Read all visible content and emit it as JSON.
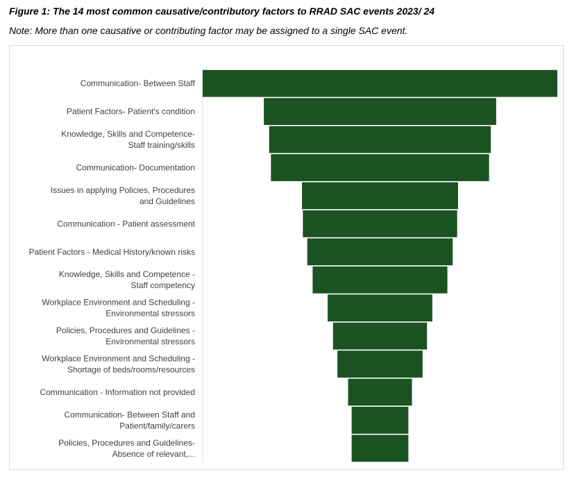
{
  "figure": {
    "title": "Figure 1: The 14 most common causative/contributory factors to RRAD SAC events 2023/ 24",
    "note": "Note: More than one causative or contributing factor may be assigned to a single SAC event."
  },
  "colors": {
    "bar": "#1a5221",
    "axis": "#d9d9d9",
    "label": "#404040"
  },
  "chart_data": {
    "type": "bar",
    "orientation": "horizontal",
    "style": "funnel",
    "title": "",
    "xlabel": "",
    "ylabel": "",
    "categories": [
      [
        "Communication- Between Staff"
      ],
      [
        "Patient Factors- Patient's condition"
      ],
      [
        "Knowledge, Skills and Competence-",
        "Staff training/skills"
      ],
      [
        "Communication- Documentation"
      ],
      [
        "Issues in applying Policies, Procedures",
        "and Guidelines"
      ],
      [
        "Communication - Patient assessment"
      ],
      [
        "Patient Factors - Medical History/known risks"
      ],
      [
        "Knowledge, Skills and Competence -",
        "Staff competency"
      ],
      [
        "Workplace Environment and Scheduling -",
        "Environmental stressors"
      ],
      [
        "Policies, Procedures and Guidelines -",
        "Environmental stressors"
      ],
      [
        "Workplace Environment and Scheduling -",
        "Shortage of beds/rooms/resources"
      ],
      [
        "Communication - Information not provided"
      ],
      [
        "Communication- Between Staff and",
        "Patient/family/carers"
      ],
      [
        "Policies, Procedures and Guidelines-",
        "Absence of relevant,..."
      ]
    ],
    "values": [
      100,
      65.5,
      62.5,
      61.5,
      44,
      43.5,
      41,
      38,
      29.5,
      26.5,
      24,
      18,
      16,
      16
    ],
    "grid": false,
    "legend": "none"
  }
}
